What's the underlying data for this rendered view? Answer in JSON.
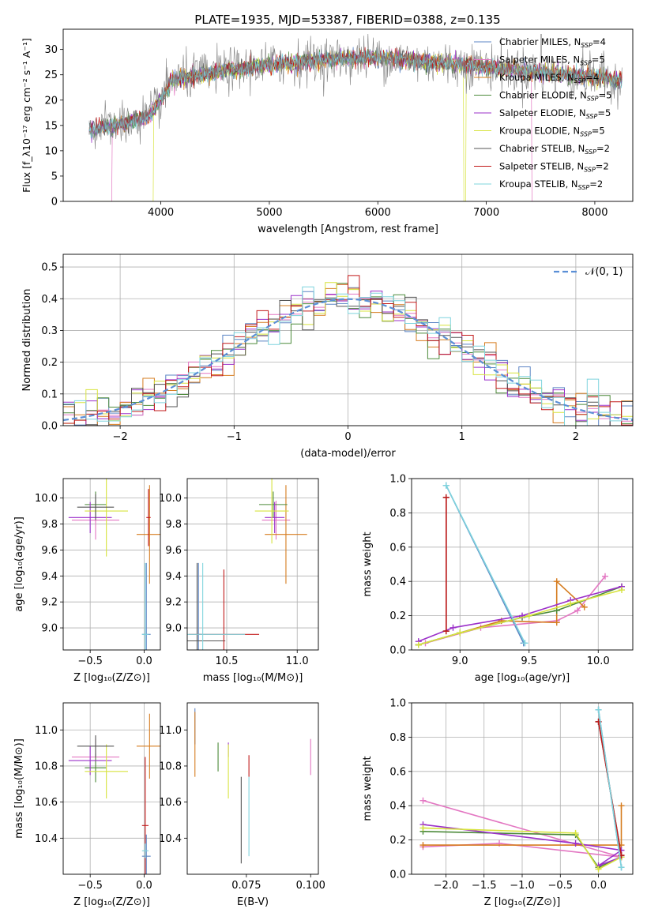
{
  "figure": {
    "title": "PLATE=1935, MJD=53387, FIBERID=0388, z=0.135",
    "background": "#ffffff"
  },
  "colors": {
    "Chabrier MILES": "#5b84c4",
    "Salpeter MILES": "#e377c2",
    "Kroupa MILES": "#d67c1f",
    "Chabrier ELODIE": "#4c8a3a",
    "Salpeter ELODIE": "#9b30c9",
    "Kroupa ELODIE": "#d7e33e",
    "Chabrier STELIB": "#555555",
    "Salpeter STELIB": "#c21a1a",
    "Kroupa STELIB": "#7fd4dd",
    "normal_curve": "#5b8fd6",
    "grid": "#b0b0b0",
    "data_spectrum": "#808080"
  },
  "chart_data": [
    {
      "id": "spectrum",
      "type": "line",
      "xlabel": "wavelength [Angstrom, rest frame]",
      "ylabel": "Flux [f_λ10⁻¹⁷ erg cm⁻² s⁻¹ A⁻¹]",
      "xlim": [
        3100,
        8350
      ],
      "ylim": [
        0,
        34
      ],
      "xticks": [
        4000,
        5000,
        6000,
        7000,
        8000
      ],
      "yticks": [
        0,
        5,
        10,
        15,
        20,
        25,
        30
      ],
      "grid": false,
      "legend_position": "upper-right",
      "wave_start": 3340,
      "wave_end": 8250,
      "continuum_knots": [
        [
          3340,
          14.2
        ],
        [
          3600,
          15
        ],
        [
          3900,
          17
        ],
        [
          4000,
          20
        ],
        [
          4100,
          24
        ],
        [
          4500,
          25.5
        ],
        [
          5000,
          27
        ],
        [
          5500,
          28
        ],
        [
          6000,
          28.5
        ],
        [
          6500,
          27.5
        ],
        [
          7000,
          26.5
        ],
        [
          7500,
          25.5
        ],
        [
          8000,
          24.5
        ],
        [
          8250,
          24
        ]
      ],
      "model_edge_drops": [
        [
          3550,
          "Salpeter MILES"
        ],
        [
          3930,
          "Kroupa ELODIE"
        ],
        [
          6790,
          "Kroupa ELODIE"
        ],
        [
          7420,
          "Salpeter MILES"
        ]
      ],
      "legend": [
        {
          "label": "Chabrier MILES, N_SSP=4",
          "key": "Chabrier MILES"
        },
        {
          "label": "Salpeter MILES, N_SSP=5",
          "key": "Salpeter MILES"
        },
        {
          "label": "Kroupa MILES, N_SSP=4",
          "key": "Kroupa MILES"
        },
        {
          "label": "Chabrier ELODIE, N_SSP=5",
          "key": "Chabrier ELODIE"
        },
        {
          "label": "Salpeter ELODIE, N_SSP=5",
          "key": "Salpeter ELODIE"
        },
        {
          "label": "Kroupa ELODIE, N_SSP=5",
          "key": "Kroupa ELODIE"
        },
        {
          "label": "Chabrier STELIB, N_SSP=2",
          "key": "Chabrier STELIB"
        },
        {
          "label": "Salpeter STELIB, N_SSP=2",
          "key": "Salpeter STELIB"
        },
        {
          "label": "Kroupa STELIB, N_SSP=2",
          "key": "Kroupa STELIB"
        }
      ]
    },
    {
      "id": "residuals",
      "type": "line",
      "xlabel": "(data-model)/error",
      "ylabel": "Normed distribution",
      "xlim": [
        -2.5,
        2.5
      ],
      "ylim": [
        0,
        0.54
      ],
      "xticks": [
        -2,
        -1,
        0,
        1,
        2
      ],
      "yticks": [
        0.0,
        0.1,
        0.2,
        0.3,
        0.4,
        0.5
      ],
      "grid": true,
      "legend_position": "upper-right",
      "legend_label": "𝒩(0, 1)",
      "bin_width": 0.1,
      "bin_start": -2.5
    },
    {
      "id": "age_vs_Z",
      "type": "scatter",
      "xlabel": "Z [log₁₀(Z/Z⊙)]",
      "ylabel": "age  [log₁₀(age/yr)]",
      "xlim": [
        -0.75,
        0.15
      ],
      "ylim": [
        8.83,
        10.15
      ],
      "xticks": [
        -0.5,
        0.0
      ],
      "yticks": [
        9.0,
        9.2,
        9.4,
        9.6,
        9.8,
        10.0
      ],
      "grid": true,
      "points": [
        {
          "key": "Chabrier MILES",
          "x": 0.02,
          "y": 8.95,
          "xerr": 0.04,
          "yerr": 0.55
        },
        {
          "key": "Salpeter MILES",
          "x": -0.45,
          "y": 9.83,
          "xerr": 0.22,
          "yerr": 0.15
        },
        {
          "key": "Kroupa MILES",
          "x": 0.05,
          "y": 9.72,
          "xerr": 0.12,
          "yerr": 0.38
        },
        {
          "key": "Chabrier ELODIE",
          "x": -0.45,
          "y": 9.95,
          "xerr": 0.1,
          "yerr": 0.1
        },
        {
          "key": "Salpeter ELODIE",
          "x": -0.5,
          "y": 9.85,
          "xerr": 0.2,
          "yerr": 0.12
        },
        {
          "key": "Kroupa ELODIE",
          "x": -0.35,
          "y": 9.9,
          "xerr": 0.2,
          "yerr": 0.35
        },
        {
          "key": "Chabrier STELIB",
          "x": -0.45,
          "y": 9.93,
          "xerr": 0.17,
          "yerr": 0.1
        },
        {
          "key": "Salpeter STELIB",
          "x": 0.04,
          "y": 9.85,
          "xerr": 0.02,
          "yerr": 0.22
        },
        {
          "key": "Kroupa STELIB",
          "x": 0.01,
          "y": 8.95,
          "xerr": 0.03,
          "yerr": 0.55
        }
      ]
    },
    {
      "id": "age_vs_mass",
      "type": "scatter",
      "xlabel": "mass [log₁₀(M/M⊙)]",
      "ylabel": "",
      "xlim": [
        10.22,
        11.15
      ],
      "ylim": [
        8.83,
        10.15
      ],
      "xticks": [
        10.5,
        11.0
      ],
      "yticks": [
        9.0,
        9.2,
        9.4,
        9.6,
        9.8,
        10.0
      ],
      "grid": true,
      "points": [
        {
          "key": "Chabrier MILES",
          "x": 10.3,
          "y": 8.95,
          "xerr": 0.02,
          "yerr": 0.55
        },
        {
          "key": "Salpeter MILES",
          "x": 10.85,
          "y": 9.83,
          "xerr": 0.1,
          "yerr": 0.15
        },
        {
          "key": "Kroupa MILES",
          "x": 10.92,
          "y": 9.72,
          "xerr": 0.15,
          "yerr": 0.38
        },
        {
          "key": "Chabrier ELODIE",
          "x": 10.83,
          "y": 9.95,
          "xerr": 0.1,
          "yerr": 0.1
        },
        {
          "key": "Salpeter ELODIE",
          "x": 10.84,
          "y": 9.85,
          "xerr": 0.07,
          "yerr": 0.12
        },
        {
          "key": "Kroupa ELODIE",
          "x": 10.82,
          "y": 9.9,
          "xerr": 0.12,
          "yerr": 0.25
        },
        {
          "key": "Chabrier STELIB",
          "x": 10.29,
          "y": 8.9,
          "xerr": 0.2,
          "yerr": 0.6
        },
        {
          "key": "Salpeter STELIB",
          "x": 10.48,
          "y": 8.95,
          "xerr": 0.25,
          "yerr": 0.5
        },
        {
          "key": "Kroupa STELIB",
          "x": 10.33,
          "y": 8.95,
          "xerr": 0.3,
          "yerr": 0.55
        }
      ]
    },
    {
      "id": "weight_vs_age",
      "type": "line",
      "xlabel": "age  [log₁₀(age/yr)]",
      "ylabel": "mass weight",
      "xlim": [
        8.65,
        10.25
      ],
      "ylim": [
        0,
        1
      ],
      "xticks": [
        9.0,
        9.5,
        10.0
      ],
      "yticks": [
        0.0,
        0.2,
        0.4,
        0.6,
        0.8,
        1.0
      ],
      "grid": true,
      "series": [
        {
          "key": "Chabrier MILES",
          "x": [
            8.9,
            9.46
          ],
          "y": [
            0.96,
            0.04
          ]
        },
        {
          "key": "Salpeter MILES",
          "x": [
            8.75,
            9.15,
            9.7,
            9.85,
            10.05
          ],
          "y": [
            0.04,
            0.13,
            0.17,
            0.23,
            0.43
          ]
        },
        {
          "key": "Kroupa MILES",
          "x": [
            8.7,
            9.3,
            9.7,
            9.7,
            9.9
          ],
          "y": [
            0.03,
            0.17,
            0.16,
            0.4,
            0.25
          ]
        },
        {
          "key": "Chabrier ELODIE",
          "x": [
            8.7,
            9.0,
            9.45,
            9.7,
            10.17
          ],
          "y": [
            0.03,
            0.1,
            0.19,
            0.23,
            0.37
          ]
        },
        {
          "key": "Salpeter ELODIE",
          "x": [
            8.7,
            8.95,
            9.45,
            9.8,
            10.17
          ],
          "y": [
            0.05,
            0.13,
            0.2,
            0.29,
            0.37
          ]
        },
        {
          "key": "Kroupa ELODIE",
          "x": [
            8.7,
            9.0,
            9.5,
            9.8,
            10.17
          ],
          "y": [
            0.03,
            0.1,
            0.2,
            0.27,
            0.35
          ]
        },
        {
          "key": "Chabrier STELIB",
          "x": [
            8.9,
            8.9
          ],
          "y": [
            0.89,
            0.11
          ]
        },
        {
          "key": "Salpeter STELIB",
          "x": [
            8.9,
            8.9
          ],
          "y": [
            0.89,
            0.11
          ]
        },
        {
          "key": "Kroupa STELIB",
          "x": [
            8.9,
            9.47
          ],
          "y": [
            0.96,
            0.04
          ]
        }
      ]
    },
    {
      "id": "mass_vs_Z",
      "type": "scatter",
      "xlabel": "Z [log₁₀(Z/Z⊙)]",
      "ylabel": "mass [log₁₀(M/M⊙)]",
      "xlim": [
        -0.75,
        0.15
      ],
      "ylim": [
        10.2,
        11.15
      ],
      "xticks": [
        -0.5,
        0.0
      ],
      "yticks": [
        10.4,
        10.6,
        10.8,
        11.0
      ],
      "grid": true,
      "points": [
        {
          "key": "Chabrier MILES",
          "x": 0.02,
          "y": 10.3,
          "xerr": 0.04,
          "yerr": 0.12
        },
        {
          "key": "Salpeter MILES",
          "x": -0.45,
          "y": 10.85,
          "xerr": 0.22,
          "yerr": 0.1
        },
        {
          "key": "Kroupa MILES",
          "x": 0.05,
          "y": 10.91,
          "xerr": 0.12,
          "yerr": 0.18
        },
        {
          "key": "Chabrier ELODIE",
          "x": -0.45,
          "y": 10.79,
          "xerr": 0.1,
          "yerr": 0.08
        },
        {
          "key": "Salpeter ELODIE",
          "x": -0.5,
          "y": 10.83,
          "xerr": 0.2,
          "yerr": 0.08
        },
        {
          "key": "Kroupa ELODIE",
          "x": -0.35,
          "y": 10.77,
          "xerr": 0.2,
          "yerr": 0.15
        },
        {
          "key": "Chabrier STELIB",
          "x": -0.45,
          "y": 10.91,
          "xerr": 0.17,
          "yerr": 0.06
        },
        {
          "key": "Salpeter STELIB",
          "x": 0.01,
          "y": 10.47,
          "xerr": 0.03,
          "yerr": 0.38
        },
        {
          "key": "Kroupa STELIB",
          "x": 0.01,
          "y": 10.33,
          "xerr": 0.03,
          "yerr": 0.04
        }
      ]
    },
    {
      "id": "mass_vs_EBV",
      "type": "scatter",
      "xlabel": "E(B-V)",
      "ylabel": "",
      "xlim": [
        0.052,
        0.103
      ],
      "ylim": [
        10.2,
        11.15
      ],
      "xticks": [
        0.075,
        0.1
      ],
      "yticks": [
        10.4,
        10.6,
        10.8,
        11.0
      ],
      "grid": false,
      "points": [
        {
          "key": "Chabrier MILES",
          "x": 0.055,
          "y": 11.02,
          "yerr": 0.1
        },
        {
          "key": "Kroupa MILES",
          "x": 0.055,
          "y": 10.92,
          "yerr": 0.18
        },
        {
          "key": "Chabrier ELODIE",
          "x": 0.064,
          "y": 10.85,
          "yerr": 0.08
        },
        {
          "key": "Salpeter ELODIE",
          "x": 0.068,
          "y": 10.89,
          "yerr": 0.04
        },
        {
          "key": "Kroupa ELODIE",
          "x": 0.068,
          "y": 10.77,
          "yerr": 0.15
        },
        {
          "key": "Chabrier STELIB",
          "x": 0.073,
          "y": 10.5,
          "yerr": 0.24
        },
        {
          "key": "Salpeter STELIB",
          "x": 0.076,
          "y": 10.8,
          "yerr": 0.06
        },
        {
          "key": "Kroupa STELIB",
          "x": 0.076,
          "y": 10.52,
          "yerr": 0.22
        },
        {
          "key": "Salpeter MILES",
          "x": 0.1,
          "y": 10.85,
          "yerr": 0.1
        }
      ]
    },
    {
      "id": "weight_vs_Z",
      "type": "line",
      "xlabel": "Z [log₁₀(Z/Z⊙)]",
      "ylabel": "mass weight",
      "xlim": [
        -2.45,
        0.45
      ],
      "ylim": [
        0,
        1
      ],
      "xticks": [
        -2.0,
        -1.5,
        -1.0,
        -0.5,
        0.0
      ],
      "yticks": [
        0.0,
        0.2,
        0.4,
        0.6,
        0.8,
        1.0
      ],
      "grid": true,
      "series": [
        {
          "key": "Chabrier MILES",
          "x": [
            0.0,
            0.3
          ],
          "y": [
            0.96,
            0.04
          ]
        },
        {
          "key": "Salpeter MILES",
          "x": [
            -2.3,
            -1.3,
            0.3,
            -2.3
          ],
          "y": [
            0.16,
            0.18,
            0.1,
            0.43
          ]
        },
        {
          "key": "Kroupa MILES",
          "x": [
            -2.3,
            0.3,
            0.3
          ],
          "y": [
            0.17,
            0.17,
            0.4
          ]
        },
        {
          "key": "Chabrier ELODIE",
          "x": [
            -2.3,
            -0.3,
            0.0,
            0.3
          ],
          "y": [
            0.25,
            0.23,
            0.04,
            0.1
          ]
        },
        {
          "key": "Salpeter ELODIE",
          "x": [
            -2.3,
            -0.3,
            0.3,
            0.0,
            0.3
          ],
          "y": [
            0.29,
            0.18,
            0.14,
            0.05,
            0.1
          ]
        },
        {
          "key": "Kroupa ELODIE",
          "x": [
            -2.3,
            -0.3,
            0.0,
            0.3
          ],
          "y": [
            0.27,
            0.24,
            0.03,
            0.1
          ]
        },
        {
          "key": "Chabrier STELIB",
          "x": [
            0.0,
            0.3
          ],
          "y": [
            0.89,
            0.11
          ]
        },
        {
          "key": "Salpeter STELIB",
          "x": [
            0.0,
            0.3
          ],
          "y": [
            0.89,
            0.11
          ]
        },
        {
          "key": "Kroupa STELIB",
          "x": [
            0.0,
            0.3
          ],
          "y": [
            0.96,
            0.04
          ]
        }
      ]
    }
  ]
}
